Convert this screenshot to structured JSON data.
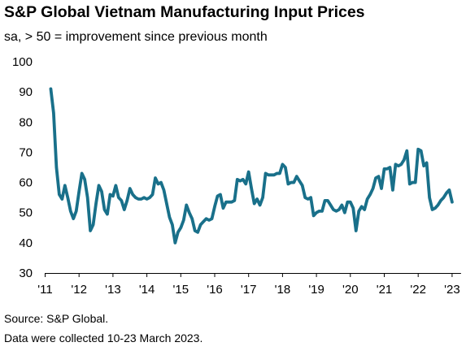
{
  "title": "S&P Global Vietnam Manufacturing Input Prices",
  "subtitle": "sa, > 50 = improvement since previous month",
  "source": "Source: S&P Global.",
  "note": "Data were collected 10-23 March 2023.",
  "line_color": "#19708A",
  "chart_data": {
    "type": "line",
    "title": "S&P Global Vietnam Manufacturing Input Prices",
    "subtitle": "sa, > 50 = improvement since previous month",
    "xlabel": "",
    "ylabel": "",
    "ylim": [
      30,
      100
    ],
    "yticks": [
      30,
      40,
      50,
      60,
      70,
      80,
      90,
      100
    ],
    "xlim": [
      "2011-03",
      "2023-03"
    ],
    "xticks": [
      {
        "label": "'11",
        "date": "2011-01"
      },
      {
        "label": "'12",
        "date": "2012-01"
      },
      {
        "label": "'13",
        "date": "2013-01"
      },
      {
        "label": "'14",
        "date": "2014-01"
      },
      {
        "label": "'15",
        "date": "2015-01"
      },
      {
        "label": "'16",
        "date": "2016-01"
      },
      {
        "label": "'17",
        "date": "2017-01"
      },
      {
        "label": "'18",
        "date": "2018-01"
      },
      {
        "label": "'19",
        "date": "2019-01"
      },
      {
        "label": "'20",
        "date": "2020-01"
      },
      {
        "label": "'21",
        "date": "2021-01"
      },
      {
        "label": "'22",
        "date": "2022-01"
      },
      {
        "label": "'23",
        "date": "2023-01"
      }
    ],
    "grid": false,
    "legend": "none",
    "series": [
      {
        "start": "2011-03",
        "frequency": "monthly",
        "values": [
          91,
          83,
          65,
          56,
          54.5,
          59,
          55,
          50.5,
          48,
          50.5,
          57,
          63,
          61,
          55,
          44,
          46,
          53,
          59,
          57,
          51,
          49.5,
          56,
          55.5,
          59,
          55,
          54,
          51,
          54,
          58,
          56,
          55,
          54.5,
          54.5,
          55,
          54.5,
          55,
          56,
          61.5,
          59.5,
          60,
          57.5,
          53,
          48.5,
          46,
          40,
          43.5,
          45,
          47.5,
          52.5,
          50,
          48,
          44,
          43.5,
          46,
          47,
          48,
          47.5,
          48,
          52,
          55.5,
          56,
          51.5,
          53.5,
          53.5,
          53.5,
          54,
          61,
          60.5,
          61,
          59.5,
          63.5,
          58,
          53,
          54.5,
          52.5,
          55,
          63,
          62.5,
          62.5,
          62.5,
          63,
          63,
          66,
          65,
          59.5,
          60,
          60,
          62,
          60.5,
          59,
          55,
          54.5,
          55,
          49,
          50,
          50.5,
          50.5,
          54,
          54,
          52.5,
          51,
          50.5,
          51,
          52.5,
          50,
          53.5,
          53.5,
          51.5,
          44,
          50.5,
          52,
          51,
          54.5,
          56,
          58,
          61.5,
          62,
          58,
          64.5,
          64.5,
          65,
          57.5,
          66,
          65.5,
          66,
          67.5,
          70.5,
          59.5,
          60,
          60,
          71,
          70.5,
          65.5,
          66.5,
          55,
          51,
          51.5,
          52.5,
          54,
          55,
          56.5,
          57.5,
          53.5
        ]
      }
    ]
  }
}
